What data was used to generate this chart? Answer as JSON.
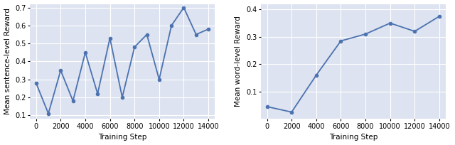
{
  "left": {
    "x": [
      0,
      1000,
      2000,
      3000,
      4000,
      5000,
      6000,
      7000,
      8000,
      9000,
      10000,
      11000,
      12000,
      13000,
      14000
    ],
    "y": [
      0.28,
      0.11,
      0.35,
      0.18,
      0.45,
      0.22,
      0.53,
      0.2,
      0.48,
      0.55,
      0.3,
      0.6,
      0.7,
      0.55,
      0.58
    ],
    "ylabel": "Mean sentence-level Reward",
    "xlabel": "Training Step",
    "ylim": [
      0.08,
      0.72
    ],
    "yticks": [
      0.1,
      0.2,
      0.3,
      0.4,
      0.5,
      0.6,
      0.7
    ],
    "xticks": [
      0,
      2000,
      4000,
      6000,
      8000,
      10000,
      12000,
      14000
    ]
  },
  "right": {
    "x": [
      0,
      2000,
      4000,
      6000,
      8000,
      10000,
      12000,
      14000
    ],
    "y": [
      0.045,
      0.025,
      0.16,
      0.285,
      0.31,
      0.35,
      0.32,
      0.375
    ],
    "ylabel": "Mean word-level Reward",
    "xlabel": "Training Step",
    "ylim": [
      0.0,
      0.42
    ],
    "yticks": [
      0.1,
      0.2,
      0.3,
      0.4
    ],
    "xticks": [
      0,
      2000,
      4000,
      6000,
      8000,
      10000,
      12000,
      14000
    ]
  },
  "line_color": "#4c72b0",
  "marker": "o",
  "markersize": 3,
  "linewidth": 1.3,
  "bg_color": "#dde3f0",
  "fig_bg": "#ffffff",
  "grid_color": "#ffffff",
  "tick_fontsize": 7,
  "label_fontsize": 7.5
}
